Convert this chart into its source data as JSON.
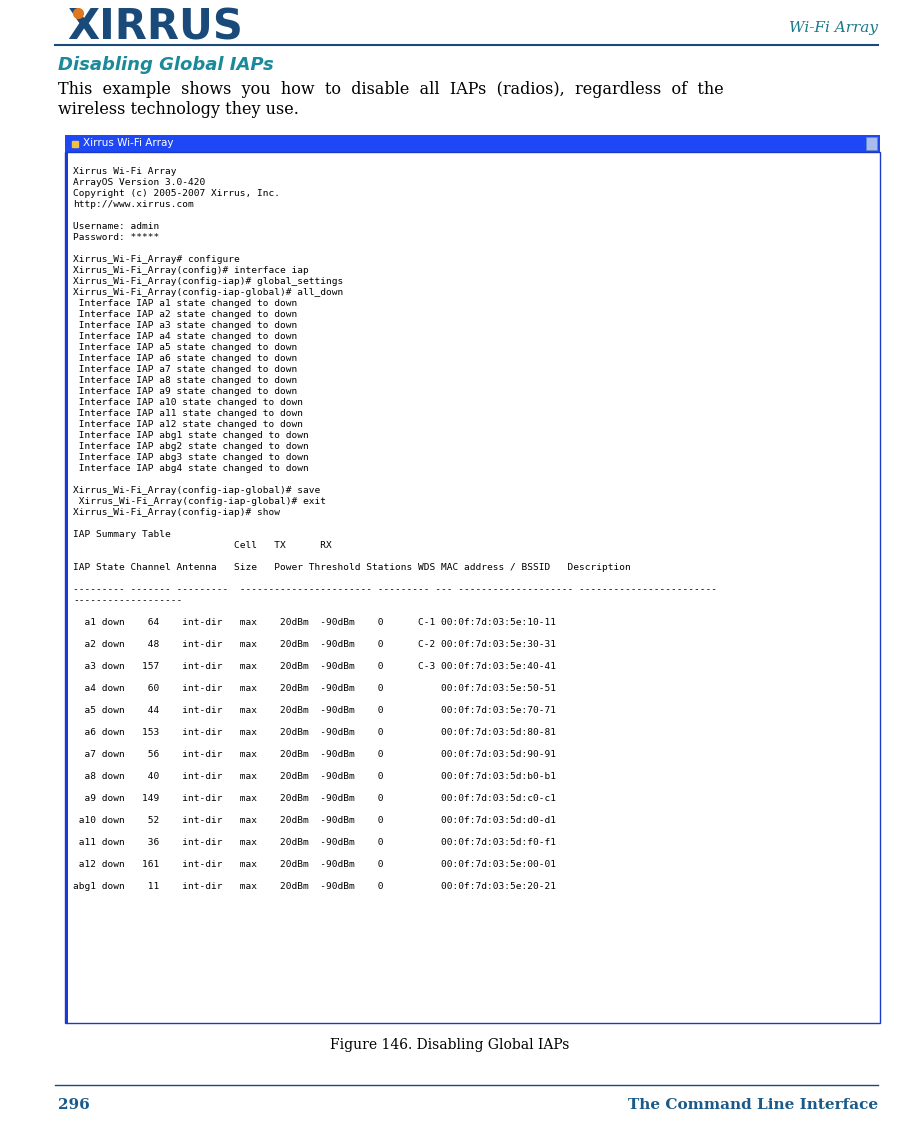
{
  "title_right": "Wi-Fi Array",
  "section_title": "Disabling Global IAPs",
  "body_line1": "This  example  shows  you  how  to  disable  all  IAPs  (radios),  regardless  of  the",
  "body_line2": "wireless technology they use.",
  "figure_caption": "Figure 146. Disabling Global IAPs",
  "page_number": "296",
  "page_footer_right": "The Command Line Interface",
  "terminal_title": "Xirrus Wi-Fi Array",
  "terminal_title_bg": "#1e47f5",
  "terminal_border_color": "#1a3acc",
  "terminal_left_bar": "#1e3acc",
  "terminal_content": [
    "",
    "Xirrus Wi-Fi Array",
    "ArrayOS Version 3.0-420",
    "Copyright (c) 2005-2007 Xirrus, Inc.",
    "http://www.xirrus.com",
    "",
    "Username: admin",
    "Password: *****",
    "",
    "Xirrus_Wi-Fi_Array# configure",
    "Xirrus_Wi-Fi_Array(config)# interface iap",
    "Xirrus_Wi-Fi_Array(config-iap)# global_settings",
    "Xirrus_Wi-Fi_Array(config-iap-global)# all_down",
    " Interface IAP a1 state changed to down",
    " Interface IAP a2 state changed to down",
    " Interface IAP a3 state changed to down",
    " Interface IAP a4 state changed to down",
    " Interface IAP a5 state changed to down",
    " Interface IAP a6 state changed to down",
    " Interface IAP a7 state changed to down",
    " Interface IAP a8 state changed to down",
    " Interface IAP a9 state changed to down",
    " Interface IAP a10 state changed to down",
    " Interface IAP a11 state changed to down",
    " Interface IAP a12 state changed to down",
    " Interface IAP abg1 state changed to down",
    " Interface IAP abg2 state changed to down",
    " Interface IAP abg3 state changed to down",
    " Interface IAP abg4 state changed to down",
    "",
    "Xirrus_Wi-Fi_Array(config-iap-global)# save",
    " Xirrus_Wi-Fi_Array(config-iap-global)# exit",
    "Xirrus_Wi-Fi_Array(config-iap)# show",
    "",
    "IAP Summary Table",
    "                            Cell   TX      RX",
    "",
    "IAP State Channel Antenna   Size   Power Threshold Stations WDS MAC address / BSSID   Description",
    "",
    "--------- ------- ---------  ----------------------- --------- --- -------------------- ------------------------",
    "-------------------",
    "",
    "  a1 down    64    int-dir   max    20dBm  -90dBm    0      C-1 00:0f:7d:03:5e:10-11",
    "",
    "  a2 down    48    int-dir   max    20dBm  -90dBm    0      C-2 00:0f:7d:03:5e:30-31",
    "",
    "  a3 down   157    int-dir   max    20dBm  -90dBm    0      C-3 00:0f:7d:03:5e:40-41",
    "",
    "  a4 down    60    int-dir   max    20dBm  -90dBm    0          00:0f:7d:03:5e:50-51",
    "",
    "  a5 down    44    int-dir   max    20dBm  -90dBm    0          00:0f:7d:03:5e:70-71",
    "",
    "  a6 down   153    int-dir   max    20dBm  -90dBm    0          00:0f:7d:03:5d:80-81",
    "",
    "  a7 down    56    int-dir   max    20dBm  -90dBm    0          00:0f:7d:03:5d:90-91",
    "",
    "  a8 down    40    int-dir   max    20dBm  -90dBm    0          00:0f:7d:03:5d:b0-b1",
    "",
    "  a9 down   149    int-dir   max    20dBm  -90dBm    0          00:0f:7d:03:5d:c0-c1",
    "",
    " a10 down    52    int-dir   max    20dBm  -90dBm    0          00:0f:7d:03:5d:d0-d1",
    "",
    " a11 down    36    int-dir   max    20dBm  -90dBm    0          00:0f:7d:03:5d:f0-f1",
    "",
    " a12 down   161    int-dir   max    20dBm  -90dBm    0          00:0f:7d:03:5e:00-01",
    "",
    "abg1 down    11    int-dir   max    20dBm  -90dBm    0          00:0f:7d:03:5e:20-21"
  ],
  "header_color": "#1a5276",
  "logo_color": "#1a4a7a",
  "orange_color": "#e07820",
  "teal_color": "#1a7a8a",
  "divider_color": "#1a4a7a",
  "body_font_size": 11.5,
  "terminal_font_size": 6.8,
  "section_title_color": "#1a8a9a",
  "page_text_color": "#1a5a8a"
}
